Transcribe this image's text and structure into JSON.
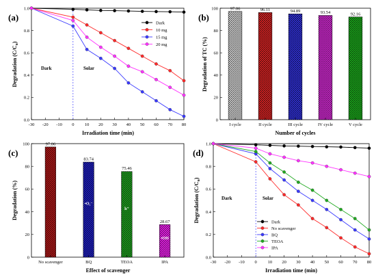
{
  "panels": [
    {
      "id": "a",
      "label": "(a)",
      "chart_data": {
        "type": "line",
        "xlabel": "Irradiation time (min)",
        "ylabel": "Degradation (C/C",
        "ylabel_sub": "o",
        "ylabel_close": ")",
        "xlim": [
          -30,
          80
        ],
        "ylim": [
          0,
          1.0
        ],
        "xticks": [
          -30,
          -20,
          -10,
          0,
          10,
          20,
          30,
          40,
          50,
          60,
          70,
          80
        ],
        "yticks": [
          0,
          0.2,
          0.4,
          0.6,
          0.8,
          1.0
        ],
        "ytick_labels": [
          "0.0",
          "0.2",
          "0.4",
          "0.6",
          "0.8",
          "1.0"
        ],
        "x": [
          -30,
          0,
          10,
          20,
          30,
          40,
          50,
          60,
          70,
          80
        ],
        "series": [
          {
            "name": "Dark",
            "color": "#000000",
            "values": [
              1.0,
              0.99,
              0.985,
              0.98,
              0.978,
              0.975,
              0.972,
              0.97,
              0.968,
              0.965
            ]
          },
          {
            "name": "10 mg",
            "color": "#ff2a2a",
            "values": [
              1.0,
              0.92,
              0.85,
              0.78,
              0.71,
              0.64,
              0.57,
              0.5,
              0.44,
              0.35
            ]
          },
          {
            "name": "15 mg",
            "color": "#3a3aff",
            "values": [
              1.0,
              0.84,
              0.63,
              0.55,
              0.46,
              0.33,
              0.25,
              0.17,
              0.09,
              0.03
            ]
          },
          {
            "name": "20 mg",
            "color": "#ff33ff",
            "values": [
              1.0,
              0.89,
              0.74,
              0.65,
              0.57,
              0.48,
              0.43,
              0.36,
              0.29,
              0.22
            ]
          }
        ],
        "annotations": {
          "dark": "Dark",
          "solar": "Solar"
        },
        "legend": "top-right"
      }
    },
    {
      "id": "b",
      "label": "(b)",
      "chart_data": {
        "type": "bar",
        "xlabel": "Number of cycles",
        "ylabel": "Degradation of TC (%)",
        "ylim": [
          0,
          100
        ],
        "yticks": [
          0,
          20,
          40,
          60,
          80,
          100
        ],
        "categories": [
          "I cycle",
          "II cycle",
          "III cycle",
          "IV cycle",
          "V cycle"
        ],
        "values": [
          97.06,
          96.11,
          94.89,
          93.54,
          92.16
        ],
        "value_labels": [
          "97.06",
          "96.11",
          "94.89",
          "93.54",
          "92.16"
        ],
        "colors": [
          "#ffffff",
          "#ff2a2a",
          "#3a3aff",
          "#ff33ff",
          "#22cc22"
        ]
      }
    },
    {
      "id": "c",
      "label": "(c)",
      "chart_data": {
        "type": "bar",
        "xlabel": "Effect of scavenger",
        "ylabel": "Degradation (%)",
        "ylim": [
          0,
          100
        ],
        "yticks": [
          0,
          20,
          40,
          60,
          80,
          100
        ],
        "categories": [
          "No scavenger",
          "BQ",
          "TEOA",
          "IPA"
        ],
        "values": [
          97.06,
          83.74,
          75.46,
          28.67
        ],
        "value_labels": [
          "97.06",
          "83.74",
          "75.46",
          "28.67"
        ],
        "colors": [
          "#b01818",
          "#2020c0",
          "#20a020",
          "#ee22ee"
        ],
        "bar_text": [
          "",
          "•O₂⁻",
          "h⁺",
          "•OH"
        ]
      }
    },
    {
      "id": "d",
      "label": "(d)",
      "chart_data": {
        "type": "line",
        "xlabel": "Irradiation time (min)",
        "ylabel": "Degradation (C/C",
        "ylabel_sub": "o",
        "ylabel_close": ")",
        "xlim": [
          -30,
          80
        ],
        "ylim": [
          0,
          1.0
        ],
        "xticks": [
          -30,
          -20,
          -10,
          0,
          10,
          20,
          30,
          40,
          50,
          60,
          70,
          80
        ],
        "yticks": [
          0,
          0.2,
          0.4,
          0.6,
          0.8,
          1.0
        ],
        "ytick_labels": [
          "0.0",
          "0.2",
          "0.4",
          "0.6",
          "0.8",
          "1.0"
        ],
        "x": [
          -30,
          0,
          10,
          20,
          30,
          40,
          50,
          60,
          70,
          80
        ],
        "series": [
          {
            "name": "Dark",
            "color": "#000000",
            "values": [
              1.0,
              0.99,
              0.985,
              0.98,
              0.978,
              0.975,
              0.972,
              0.97,
              0.965,
              0.96
            ]
          },
          {
            "name": "No scavenger",
            "color": "#ff2a2a",
            "values": [
              1.0,
              0.84,
              0.69,
              0.55,
              0.46,
              0.34,
              0.26,
              0.17,
              0.09,
              0.03
            ]
          },
          {
            "name": "BQ",
            "color": "#3a3aff",
            "values": [
              1.0,
              0.91,
              0.78,
              0.68,
              0.58,
              0.5,
              0.42,
              0.33,
              0.24,
              0.16
            ]
          },
          {
            "name": "TEOA",
            "color": "#22aa22",
            "values": [
              1.0,
              0.93,
              0.83,
              0.75,
              0.66,
              0.59,
              0.5,
              0.42,
              0.34,
              0.24
            ]
          },
          {
            "name": "IPA",
            "color": "#ff33ff",
            "values": [
              1.0,
              0.96,
              0.91,
              0.88,
              0.85,
              0.83,
              0.8,
              0.77,
              0.74,
              0.71
            ]
          }
        ],
        "annotations": {
          "dark": "Dark",
          "solar": "Solar"
        },
        "legend": "bottom-center"
      }
    }
  ]
}
